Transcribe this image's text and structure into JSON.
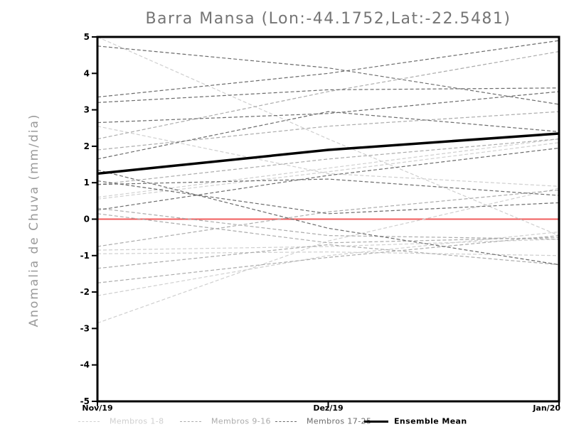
{
  "chart_data": {
    "type": "line",
    "title": "Barra Mansa (Lon:-44.1752,Lat:-22.5481)",
    "ylabel": "Anomalia de Chuva (mm/dia)",
    "x_categories": [
      "Nov/19",
      "Dez/19",
      "Jan/20"
    ],
    "ylim": [
      -5,
      5
    ],
    "yticks": [
      5,
      4,
      3,
      2,
      1,
      0,
      -1,
      -2,
      -3,
      -4,
      -5
    ],
    "grid": false,
    "legend_position": "bottom",
    "axis_color": "#000000",
    "zero_line": {
      "value": 0,
      "color": "#f05c5c"
    },
    "groups": [
      {
        "name": "Membros 1-8",
        "color": "#cfcfcf",
        "style": "dashed"
      },
      {
        "name": "Membros 9-16",
        "color": "#ababab",
        "style": "dashed"
      },
      {
        "name": "Membros 17-25",
        "color": "#6b6b6b",
        "style": "dashed"
      },
      {
        "name": "Ensemble Mean",
        "color": "#000000",
        "style": "solid"
      }
    ],
    "series": [
      {
        "name": "member-1",
        "group": 0,
        "values": [
          5.0,
          2.2,
          -0.45
        ]
      },
      {
        "name": "member-2",
        "group": 0,
        "values": [
          2.55,
          1.25,
          0.9
        ]
      },
      {
        "name": "member-3",
        "group": 0,
        "values": [
          0.6,
          1.4,
          2.2
        ]
      },
      {
        "name": "member-4",
        "group": 0,
        "values": [
          0.55,
          1.3,
          2.1
        ]
      },
      {
        "name": "member-5",
        "group": 0,
        "values": [
          -0.85,
          -0.75,
          -0.55
        ]
      },
      {
        "name": "member-6",
        "group": 0,
        "values": [
          -0.95,
          -0.9,
          -1.0
        ]
      },
      {
        "name": "member-7",
        "group": 0,
        "values": [
          -2.1,
          -1.0,
          -0.35
        ]
      },
      {
        "name": "member-8",
        "group": 0,
        "values": [
          -2.85,
          -0.6,
          0.85
        ]
      },
      {
        "name": "member-9",
        "group": 1,
        "values": [
          1.9,
          2.55,
          2.95
        ]
      },
      {
        "name": "member-10",
        "group": 1,
        "values": [
          0.3,
          -0.45,
          -0.55
        ]
      },
      {
        "name": "member-11",
        "group": 1,
        "values": [
          0.15,
          -0.65,
          -0.5
        ]
      },
      {
        "name": "member-12",
        "group": 1,
        "values": [
          -0.75,
          0.2,
          0.8
        ]
      },
      {
        "name": "member-13",
        "group": 1,
        "values": [
          -1.35,
          -0.7,
          -1.25
        ]
      },
      {
        "name": "member-14",
        "group": 1,
        "values": [
          -1.75,
          -1.05,
          -0.45
        ]
      },
      {
        "name": "member-15",
        "group": 1,
        "values": [
          0.95,
          1.65,
          2.2
        ]
      },
      {
        "name": "member-16",
        "group": 1,
        "values": [
          2.2,
          3.5,
          4.6
        ]
      },
      {
        "name": "member-17",
        "group": 2,
        "values": [
          4.75,
          4.15,
          3.15
        ]
      },
      {
        "name": "member-18",
        "group": 2,
        "values": [
          3.35,
          4.0,
          4.9
        ]
      },
      {
        "name": "member-19",
        "group": 2,
        "values": [
          3.2,
          3.55,
          3.6
        ]
      },
      {
        "name": "member-20",
        "group": 2,
        "values": [
          2.65,
          2.9,
          3.5
        ]
      },
      {
        "name": "member-21",
        "group": 2,
        "values": [
          1.65,
          2.95,
          2.4
        ]
      },
      {
        "name": "member-22",
        "group": 2,
        "values": [
          1.35,
          -0.25,
          -1.25
        ]
      },
      {
        "name": "member-23",
        "group": 2,
        "values": [
          1.05,
          0.15,
          0.45
        ]
      },
      {
        "name": "member-24",
        "group": 2,
        "values": [
          0.95,
          1.1,
          0.65
        ]
      },
      {
        "name": "member-25",
        "group": 2,
        "values": [
          0.25,
          1.2,
          1.95
        ]
      },
      {
        "name": "ensemble-mean",
        "group": 3,
        "values": [
          1.25,
          1.9,
          2.35
        ]
      }
    ]
  }
}
